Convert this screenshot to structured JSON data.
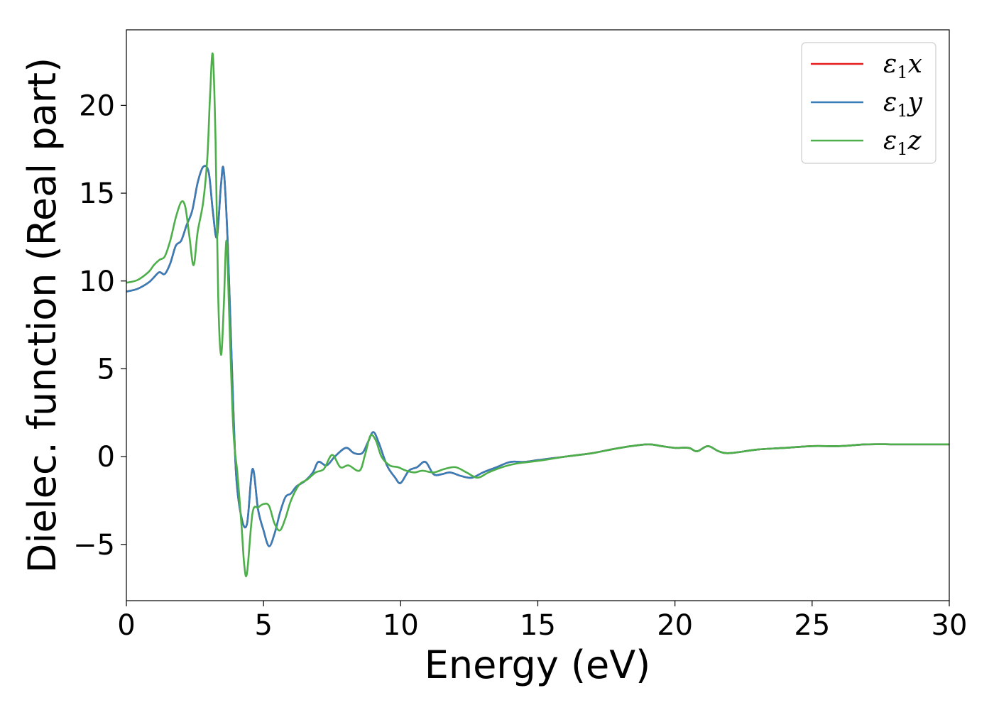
{
  "chart_data": {
    "type": "line",
    "xlabel": "Energy (eV)",
    "ylabel": "Dielec. function (Real part)",
    "xlim": [
      0,
      30
    ],
    "ylim": [
      -8.2,
      24.3
    ],
    "xticks": [
      0,
      5,
      10,
      15,
      20,
      25,
      30
    ],
    "yticks": [
      -5,
      0,
      5,
      10,
      15,
      20
    ],
    "grid": false,
    "legend_placement": "top-right",
    "series": [
      {
        "name": "ε1x",
        "color": "#e41a1c",
        "x": [
          0,
          0.4,
          0.8,
          1.0,
          1.2,
          1.4,
          1.6,
          1.8,
          2.0,
          2.2,
          2.4,
          2.6,
          2.8,
          3.0,
          3.15,
          3.3,
          3.45,
          3.55,
          3.7,
          3.85,
          4.0,
          4.2,
          4.4,
          4.6,
          4.8,
          5.0,
          5.2,
          5.4,
          5.6,
          5.8,
          6.0,
          6.2,
          6.5,
          6.8,
          7.0,
          7.3,
          7.6,
          8.0,
          8.3,
          8.6,
          8.8,
          9.0,
          9.2,
          9.5,
          9.8,
          10.0,
          10.3,
          10.6,
          10.9,
          11.2,
          11.5,
          11.8,
          12.2,
          12.6,
          13.0,
          13.5,
          14.0,
          14.5,
          15.0,
          15.5,
          16.0,
          16.5,
          17.0,
          18.0,
          19.0,
          19.5,
          20.0,
          20.5,
          20.8,
          21.2,
          21.6,
          22.0,
          23.0,
          24.0,
          25.0,
          26.0,
          27.0,
          28.0,
          29.0,
          30.0
        ],
        "y": [
          9.4,
          9.55,
          9.9,
          10.2,
          10.5,
          10.4,
          11.0,
          12.0,
          12.3,
          13.2,
          14.0,
          15.6,
          16.5,
          16.2,
          14.0,
          12.5,
          15.5,
          16.3,
          12.0,
          5.0,
          -1.0,
          -3.5,
          -3.8,
          -0.7,
          -3.0,
          -4.2,
          -5.1,
          -4.4,
          -3.2,
          -2.3,
          -2.1,
          -1.7,
          -1.4,
          -0.9,
          -0.3,
          -0.5,
          0.0,
          0.5,
          0.2,
          0.2,
          0.8,
          1.4,
          0.8,
          -0.5,
          -1.2,
          -1.5,
          -0.8,
          -0.6,
          -0.3,
          -1.0,
          -1.0,
          -0.9,
          -1.1,
          -1.2,
          -0.9,
          -0.6,
          -0.3,
          -0.3,
          -0.2,
          -0.1,
          0.0,
          0.1,
          0.2,
          0.5,
          0.7,
          0.6,
          0.5,
          0.5,
          0.3,
          0.6,
          0.3,
          0.2,
          0.4,
          0.5,
          0.6,
          0.6,
          0.7,
          0.7,
          0.7,
          0.7
        ]
      },
      {
        "name": "ε1y",
        "color": "#377eb8",
        "x": [
          0,
          0.4,
          0.8,
          1.0,
          1.2,
          1.4,
          1.6,
          1.8,
          2.0,
          2.2,
          2.4,
          2.6,
          2.8,
          3.0,
          3.15,
          3.3,
          3.45,
          3.55,
          3.7,
          3.85,
          4.0,
          4.2,
          4.4,
          4.6,
          4.8,
          5.0,
          5.2,
          5.4,
          5.6,
          5.8,
          6.0,
          6.2,
          6.5,
          6.8,
          7.0,
          7.3,
          7.6,
          8.0,
          8.3,
          8.6,
          8.8,
          9.0,
          9.2,
          9.5,
          9.8,
          10.0,
          10.3,
          10.6,
          10.9,
          11.2,
          11.5,
          11.8,
          12.2,
          12.6,
          13.0,
          13.5,
          14.0,
          14.5,
          15.0,
          15.5,
          16.0,
          16.5,
          17.0,
          18.0,
          19.0,
          19.5,
          20.0,
          20.5,
          20.8,
          21.2,
          21.6,
          22.0,
          23.0,
          24.0,
          25.0,
          26.0,
          27.0,
          28.0,
          29.0,
          30.0
        ],
        "y": [
          9.4,
          9.55,
          9.9,
          10.2,
          10.5,
          10.4,
          11.0,
          12.0,
          12.3,
          13.2,
          14.0,
          15.6,
          16.5,
          16.2,
          14.0,
          12.5,
          15.5,
          16.3,
          12.0,
          5.0,
          -1.0,
          -3.5,
          -3.8,
          -0.7,
          -3.0,
          -4.2,
          -5.1,
          -4.4,
          -3.2,
          -2.3,
          -2.1,
          -1.7,
          -1.4,
          -0.9,
          -0.3,
          -0.5,
          0.0,
          0.5,
          0.2,
          0.2,
          0.8,
          1.4,
          0.8,
          -0.5,
          -1.2,
          -1.5,
          -0.8,
          -0.6,
          -0.3,
          -1.0,
          -1.0,
          -0.9,
          -1.1,
          -1.2,
          -0.9,
          -0.6,
          -0.3,
          -0.3,
          -0.2,
          -0.1,
          0.0,
          0.1,
          0.2,
          0.5,
          0.7,
          0.6,
          0.5,
          0.5,
          0.3,
          0.6,
          0.3,
          0.2,
          0.4,
          0.5,
          0.6,
          0.6,
          0.7,
          0.7,
          0.7,
          0.7
        ]
      },
      {
        "name": "ε1z",
        "color": "#4daf4a",
        "x": [
          0,
          0.4,
          0.8,
          1.0,
          1.2,
          1.4,
          1.6,
          1.8,
          2.0,
          2.15,
          2.3,
          2.45,
          2.6,
          2.8,
          2.95,
          3.05,
          3.15,
          3.25,
          3.35,
          3.45,
          3.55,
          3.65,
          3.75,
          3.9,
          4.05,
          4.2,
          4.3,
          4.4,
          4.6,
          4.8,
          5.0,
          5.2,
          5.4,
          5.6,
          5.8,
          6.0,
          6.3,
          6.6,
          6.9,
          7.2,
          7.5,
          7.8,
          8.1,
          8.5,
          8.7,
          8.9,
          9.1,
          9.3,
          9.6,
          9.9,
          10.2,
          10.5,
          10.8,
          11.2,
          11.6,
          12.0,
          12.4,
          12.8,
          13.2,
          13.7,
          14.2,
          14.7,
          15.2,
          16.0,
          17.0,
          18.0,
          19.0,
          19.5,
          20.0,
          20.5,
          20.8,
          21.2,
          21.6,
          22.0,
          23.0,
          24.0,
          25.0,
          26.0,
          27.0,
          28.0,
          29.0,
          30.0
        ],
        "y": [
          9.9,
          10.05,
          10.5,
          10.9,
          11.2,
          11.4,
          12.3,
          13.6,
          14.5,
          14.2,
          12.5,
          10.9,
          12.8,
          14.5,
          17.0,
          20.5,
          22.9,
          18.0,
          9.0,
          5.8,
          8.5,
          12.3,
          8.0,
          1.5,
          -1.0,
          -4.0,
          -6.2,
          -6.6,
          -3.2,
          -2.9,
          -2.7,
          -2.8,
          -3.8,
          -4.2,
          -3.5,
          -2.5,
          -1.6,
          -1.3,
          -0.9,
          -0.7,
          0.1,
          -0.6,
          -0.5,
          -0.8,
          0.1,
          1.2,
          0.9,
          0.0,
          -0.5,
          -0.6,
          -0.8,
          -0.9,
          -0.8,
          -0.9,
          -0.7,
          -0.6,
          -0.9,
          -1.2,
          -0.9,
          -0.6,
          -0.4,
          -0.3,
          -0.2,
          0.0,
          0.2,
          0.5,
          0.7,
          0.6,
          0.5,
          0.5,
          0.3,
          0.6,
          0.3,
          0.2,
          0.4,
          0.5,
          0.6,
          0.6,
          0.7,
          0.7,
          0.7,
          0.7
        ]
      }
    ]
  }
}
